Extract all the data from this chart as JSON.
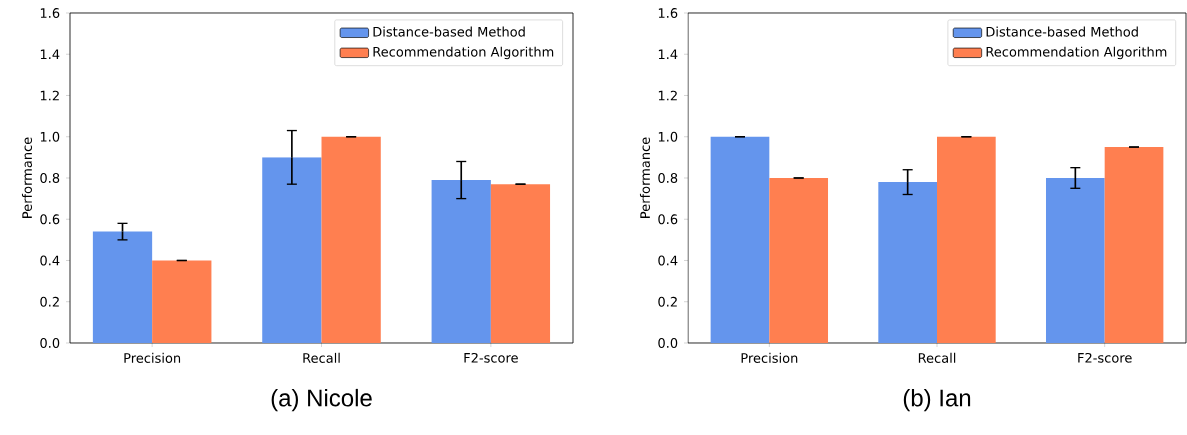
{
  "chart_data": [
    {
      "type": "bar",
      "title": "(a)  Nicole",
      "ylabel": "Performance",
      "categories": [
        "Precision",
        "Recall",
        "F2-score"
      ],
      "series": [
        {
          "name": "Distance-based Method",
          "color": "#6495ed",
          "values": [
            0.54,
            0.9,
            0.79
          ],
          "errors": [
            0.04,
            0.13,
            0.09
          ]
        },
        {
          "name": "Recommendation Algorithm",
          "color": "#ff7f50",
          "values": [
            0.4,
            1.0,
            0.77
          ],
          "errors": [
            0,
            0,
            0
          ]
        }
      ],
      "ylim": [
        0,
        1.6
      ],
      "yticks": [
        {
          "value": 0,
          "label": "0.0"
        },
        {
          "value": 0.2,
          "label": "0.2"
        },
        {
          "value": 0.4,
          "label": "0.4"
        },
        {
          "value": 0.6,
          "label": "0.6"
        },
        {
          "value": 0.8,
          "label": "0.8"
        },
        {
          "value": 1.0,
          "label": "1.0"
        },
        {
          "value": 1.2,
          "label": "1.2"
        },
        {
          "value": 1.4,
          "label": "1.4"
        },
        {
          "value": 1.6,
          "label": "1.6"
        }
      ],
      "legend": "top right"
    },
    {
      "type": "bar",
      "title": "(b)  Ian",
      "ylabel": "Performance",
      "categories": [
        "Precision",
        "Recall",
        "F2-score"
      ],
      "series": [
        {
          "name": "Distance-based Method",
          "color": "#6495ed",
          "values": [
            1.0,
            0.78,
            0.8
          ],
          "errors": [
            0,
            0.06,
            0.05
          ]
        },
        {
          "name": "Recommendation Algorithm",
          "color": "#ff7f50",
          "values": [
            0.8,
            1.0,
            0.95
          ],
          "errors": [
            0,
            0,
            0
          ]
        }
      ],
      "ylim": [
        0,
        1.6
      ],
      "yticks": [
        {
          "value": 0,
          "label": "0.0"
        },
        {
          "value": 0.2,
          "label": "0.2"
        },
        {
          "value": 0.4,
          "label": "0.4"
        },
        {
          "value": 0.6,
          "label": "0.6"
        },
        {
          "value": 0.8,
          "label": "0.8"
        },
        {
          "value": 1.0,
          "label": "1.0"
        },
        {
          "value": 1.2,
          "label": "1.2"
        },
        {
          "value": 1.4,
          "label": "1.4"
        },
        {
          "value": 1.6,
          "label": "1.6"
        }
      ],
      "legend": "top right"
    }
  ]
}
